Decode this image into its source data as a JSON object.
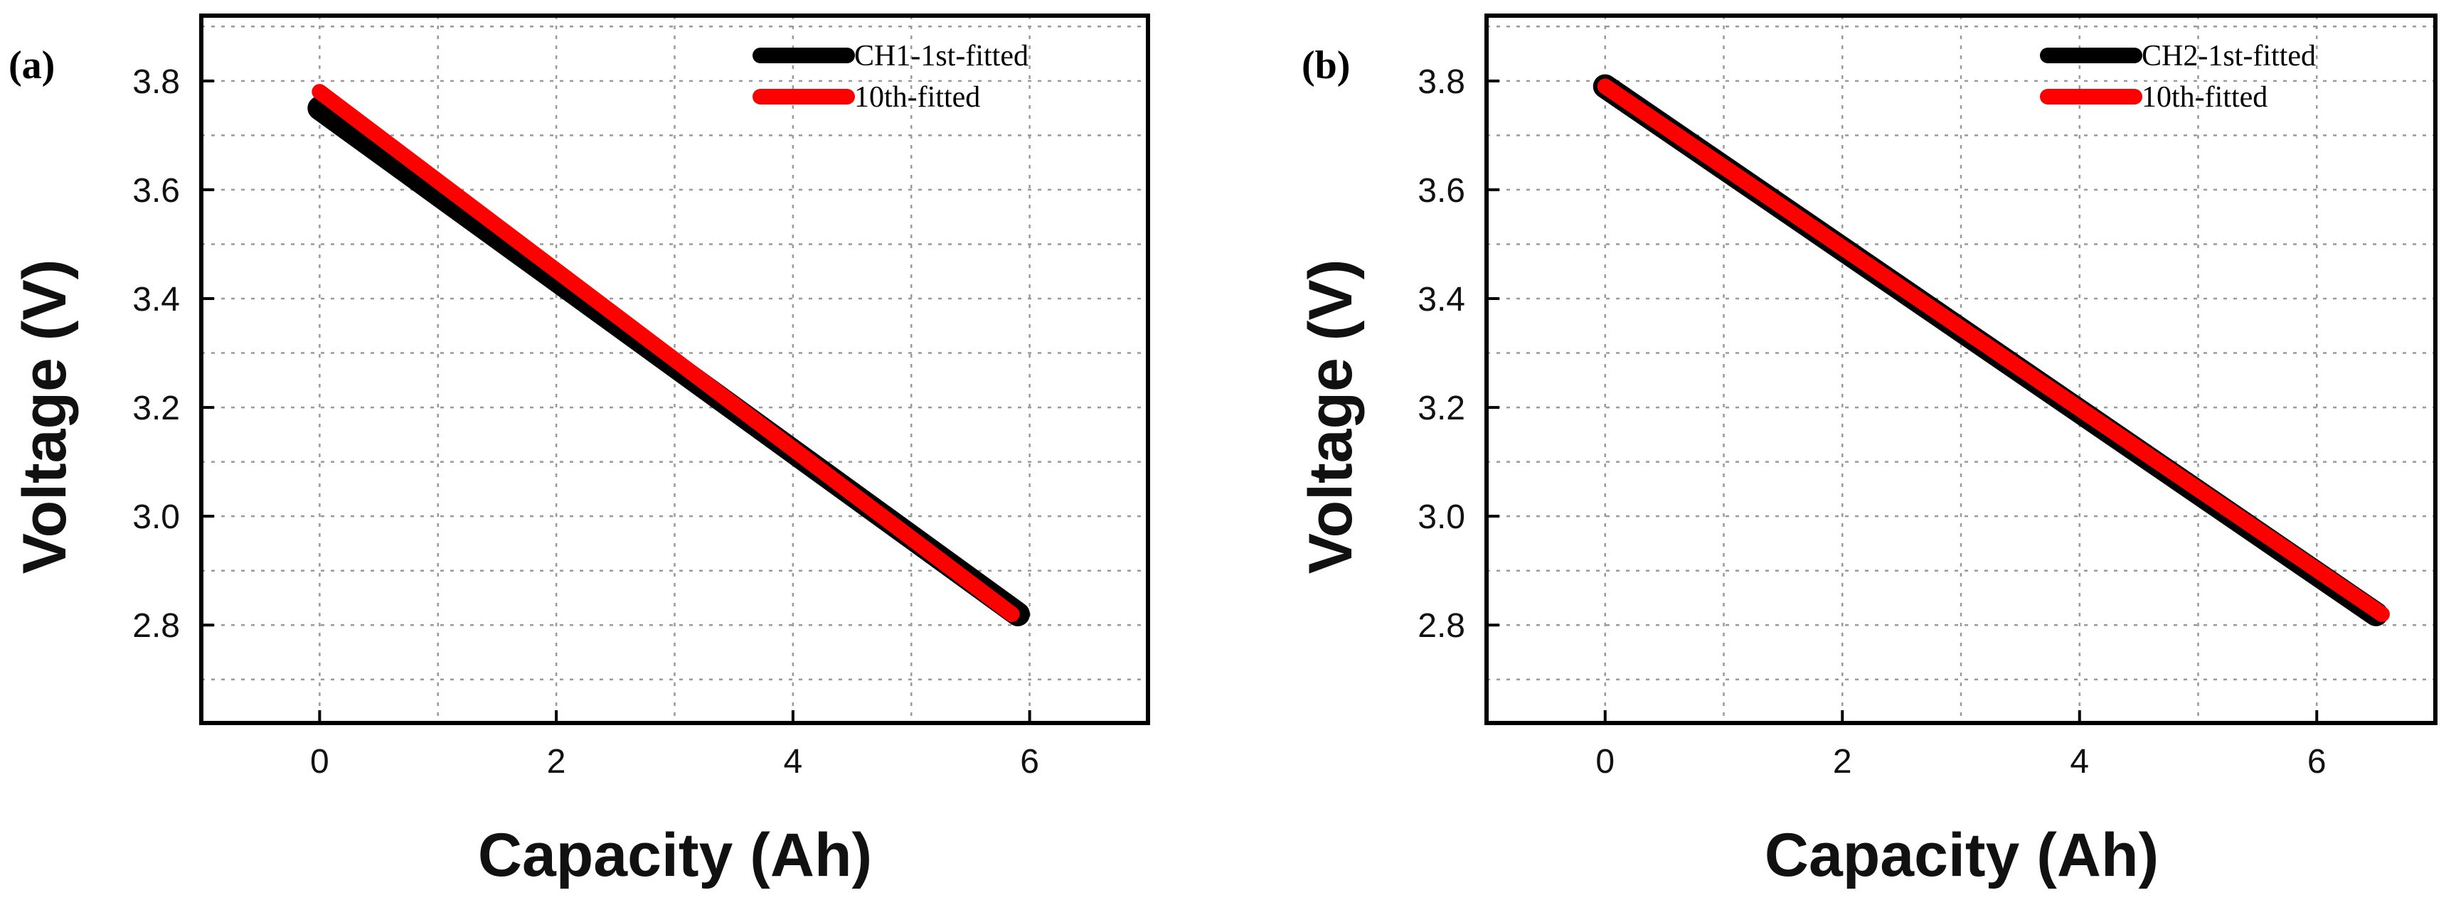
{
  "chart_data": [
    {
      "type": "line",
      "panel_label": "(a)",
      "xlabel": "Capacity (Ah)",
      "ylabel": "Voltage (V)",
      "xlim": [
        -1,
        7
      ],
      "ylim": [
        2.62,
        3.92
      ],
      "xticks": [
        0,
        2,
        4,
        6
      ],
      "xtick_labels": [
        "0",
        "2",
        "4",
        "6"
      ],
      "yticks": [
        2.8,
        3.0,
        3.2,
        3.4,
        3.6,
        3.8
      ],
      "ytick_labels": [
        "2.8",
        "3.0",
        "3.2",
        "3.4",
        "3.6",
        "3.8"
      ],
      "grid": true,
      "legend_position": "top-right",
      "series": [
        {
          "name": "CH1-1st-fitted",
          "color": "#000000",
          "x": [
            0,
            5.9
          ],
          "y": [
            3.75,
            2.82
          ]
        },
        {
          "name": "10th-fitted",
          "color": "#ff0000",
          "x": [
            0,
            5.85
          ],
          "y": [
            3.78,
            2.82
          ]
        }
      ]
    },
    {
      "type": "line",
      "panel_label": "(b)",
      "xlabel": "Capacity (Ah)",
      "ylabel": "Voltage (V)",
      "xlim": [
        -1,
        7
      ],
      "ylim": [
        2.62,
        3.92
      ],
      "xticks": [
        0,
        2,
        4,
        6
      ],
      "xtick_labels": [
        "0",
        "2",
        "4",
        "6"
      ],
      "yticks": [
        2.8,
        3.0,
        3.2,
        3.4,
        3.6,
        3.8
      ],
      "ytick_labels": [
        "2.8",
        "3.0",
        "3.2",
        "3.4",
        "3.6",
        "3.8"
      ],
      "grid": true,
      "legend_position": "top-right",
      "series": [
        {
          "name": "CH2-1st-fitted",
          "color": "#000000",
          "x": [
            0,
            6.5
          ],
          "y": [
            3.79,
            2.82
          ]
        },
        {
          "name": "10th-fitted",
          "color": "#ff0000",
          "x": [
            0,
            6.55
          ],
          "y": [
            3.79,
            2.82
          ]
        }
      ]
    }
  ]
}
